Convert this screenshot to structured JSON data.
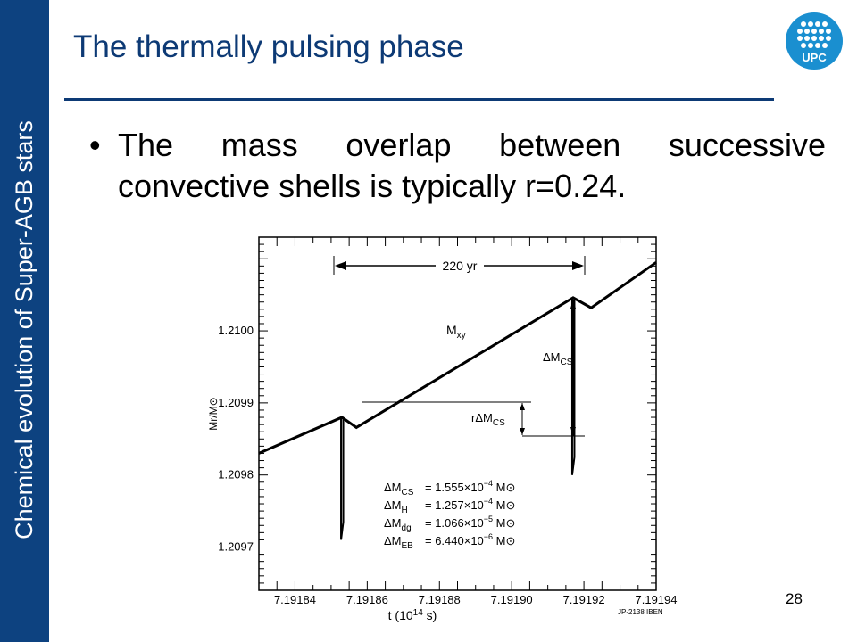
{
  "sidebar": {
    "text": "Chemical evolution of Super-AGB stars"
  },
  "slide": {
    "title": "The thermally pulsing phase",
    "bullet": "The mass overlap between successive convective shells is typically r=0.24.",
    "page_number": "28"
  },
  "logo": {
    "text": "UPC"
  },
  "chart_data": {
    "type": "line",
    "xlabel": "t (10^14 s)",
    "ylabel": "Mr/M⊙",
    "x_ticks": [
      "7.19184",
      "7.19186",
      "7.19188",
      "7.19190",
      "7.19192",
      "7.19194"
    ],
    "y_ticks": [
      "1.2100",
      "1.2099",
      "1.2098",
      "1.2097"
    ],
    "xlim": [
      7.19183,
      7.19194
    ],
    "ylim": [
      1.20964,
      1.21013
    ],
    "series": [
      {
        "name": "Mxy",
        "x": [
          7.19183,
          7.191853,
          7.191857,
          7.191917,
          7.191922,
          7.19194
        ],
        "y": [
          1.20983,
          1.20988,
          1.209866,
          1.210046,
          1.210032,
          1.210095
        ]
      }
    ],
    "convective_shell_spikes": [
      {
        "x": 7.191853,
        "ymin": 1.20971,
        "ymax": 1.20988
      },
      {
        "x": 7.191917,
        "ymin": 1.2098,
        "ymax": 1.210046
      }
    ],
    "annotations": {
      "interval": "220 yr",
      "curve_label": "M",
      "curve_label_sub": "xy",
      "delta_label": "ΔM",
      "delta_label_sub": "CS",
      "overlap_label": "rΔM",
      "overlap_label_sub": "CS",
      "credit": "JP-2138 IBEN"
    },
    "legend": [
      {
        "sym": "ΔM",
        "sub": "CS",
        "value": "= 1.555×10",
        "exp": "−4",
        "unit": " M⊙"
      },
      {
        "sym": "ΔM",
        "sub": "H",
        "value": "= 1.257×10",
        "exp": "−4",
        "unit": " M⊙"
      },
      {
        "sym": "ΔM",
        "sub": "dg",
        "value": "= 1.066×10",
        "exp": "−5",
        "unit": " M⊙"
      },
      {
        "sym": "ΔM",
        "sub": "EB",
        "value": "= 6.440×10",
        "exp": "−6",
        "unit": " M⊙"
      }
    ],
    "xlabel_parts": {
      "pre": "t  (10",
      "exp": "14",
      "post": " s)"
    },
    "grid": false
  }
}
